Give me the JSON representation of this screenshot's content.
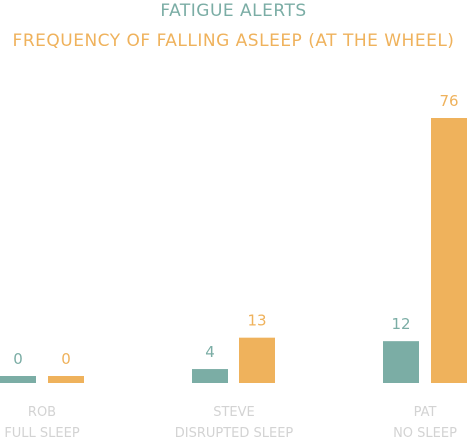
{
  "chart_data": {
    "type": "bar",
    "title": "FATIGUE ALERTS",
    "subtitle": "FREQUENCY OF FALLING ASLEEP (AT THE WHEEL)",
    "categories": [
      [
        "ROB",
        "FULL SLEEP"
      ],
      [
        "STEVE",
        "DISRUPTED SLEEP"
      ],
      [
        "PAT",
        "NO SLEEP"
      ]
    ],
    "series": [
      {
        "values": [
          0,
          4,
          12
        ],
        "color": "#7bada5"
      },
      {
        "values": [
          0,
          13,
          76
        ],
        "color": "#efb25c"
      }
    ],
    "ylim": [
      0,
      76
    ],
    "grid": false,
    "legend": "none"
  }
}
